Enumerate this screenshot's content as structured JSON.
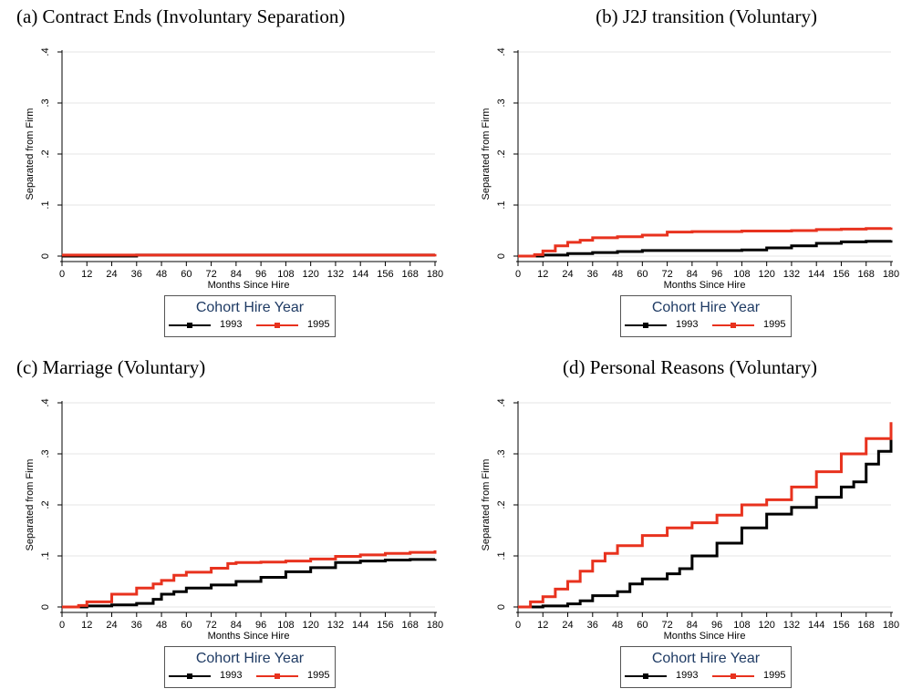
{
  "colors": {
    "c1993": "#000000",
    "c1995": "#e8321e",
    "grid": "#e6e6e6"
  },
  "legend": {
    "title": "Cohort Hire Year",
    "labels": [
      "1993",
      "1995"
    ]
  },
  "chart_data": [
    {
      "type": "line",
      "title": "(a) Contract Ends (Involuntary Separation)",
      "xlabel": "Months Since Hire",
      "ylabel": "Separated from Firm",
      "xlim": [
        0,
        180
      ],
      "ylim": [
        0,
        0.4
      ],
      "xticks": [
        "0",
        "12",
        "24",
        "36",
        "48",
        "60",
        "72",
        "84",
        "96",
        "108",
        "120",
        "132",
        "144",
        "156",
        "168",
        "180"
      ],
      "yticks": [
        "0",
        ".1",
        ".2",
        ".3",
        ".4"
      ],
      "series": [
        {
          "name": "1993",
          "x": [
            0,
            35,
            36,
            180
          ],
          "y": [
            0,
            0,
            0.002,
            0.002
          ]
        },
        {
          "name": "1995",
          "x": [
            0,
            180
          ],
          "y": [
            0.002,
            0.004
          ]
        }
      ]
    },
    {
      "type": "line",
      "title": "(b) J2J transition (Voluntary)",
      "xlabel": "Months Since Hire",
      "ylabel": "Separated from Firm",
      "xlim": [
        0,
        180
      ],
      "ylim": [
        0,
        0.4
      ],
      "xticks": [
        "0",
        "12",
        "24",
        "36",
        "48",
        "60",
        "72",
        "84",
        "96",
        "108",
        "120",
        "132",
        "144",
        "156",
        "168",
        "180"
      ],
      "yticks": [
        "0",
        ".1",
        ".2",
        ".3",
        ".4"
      ],
      "series": [
        {
          "name": "1993",
          "x": [
            0,
            12,
            24,
            36,
            48,
            60,
            84,
            108,
            120,
            132,
            144,
            156,
            168,
            180
          ],
          "y": [
            0,
            0.002,
            0.005,
            0.007,
            0.009,
            0.011,
            0.011,
            0.012,
            0.016,
            0.02,
            0.025,
            0.028,
            0.029,
            0.031
          ]
        },
        {
          "name": "1995",
          "x": [
            0,
            8,
            12,
            18,
            24,
            30,
            36,
            48,
            60,
            72,
            84,
            96,
            108,
            120,
            132,
            144,
            156,
            168,
            180
          ],
          "y": [
            0,
            0.003,
            0.01,
            0.02,
            0.027,
            0.031,
            0.036,
            0.038,
            0.041,
            0.047,
            0.048,
            0.048,
            0.049,
            0.049,
            0.05,
            0.052,
            0.053,
            0.054,
            0.056
          ]
        }
      ]
    },
    {
      "type": "line",
      "title": "(c) Marriage (Voluntary)",
      "xlabel": "Months Since Hire",
      "ylabel": "Separated from Firm",
      "xlim": [
        0,
        180
      ],
      "ylim": [
        0,
        0.4
      ],
      "xticks": [
        "0",
        "12",
        "24",
        "36",
        "48",
        "60",
        "72",
        "84",
        "96",
        "108",
        "120",
        "132",
        "144",
        "156",
        "168",
        "180"
      ],
      "yticks": [
        "0",
        ".1",
        ".2",
        ".3",
        ".4"
      ],
      "series": [
        {
          "name": "1993",
          "x": [
            0,
            12,
            24,
            36,
            44,
            48,
            54,
            60,
            72,
            84,
            96,
            108,
            120,
            132,
            144,
            156,
            168,
            180
          ],
          "y": [
            0,
            0.002,
            0.004,
            0.007,
            0.015,
            0.025,
            0.03,
            0.037,
            0.043,
            0.05,
            0.058,
            0.069,
            0.077,
            0.087,
            0.09,
            0.092,
            0.093,
            0.094
          ]
        },
        {
          "name": "1995",
          "x": [
            0,
            8,
            12,
            24,
            36,
            44,
            48,
            54,
            60,
            72,
            80,
            84,
            96,
            108,
            120,
            132,
            144,
            156,
            168,
            180
          ],
          "y": [
            0,
            0.003,
            0.01,
            0.025,
            0.037,
            0.045,
            0.052,
            0.062,
            0.068,
            0.076,
            0.085,
            0.087,
            0.088,
            0.09,
            0.094,
            0.099,
            0.102,
            0.105,
            0.107,
            0.111
          ]
        }
      ]
    },
    {
      "type": "line",
      "title": "(d) Personal Reasons (Voluntary)",
      "xlabel": "Months Since Hire",
      "ylabel": "Separated from Firm",
      "xlim": [
        0,
        180
      ],
      "ylim": [
        0,
        0.4
      ],
      "xticks": [
        "0",
        "12",
        "24",
        "36",
        "48",
        "60",
        "72",
        "84",
        "96",
        "108",
        "120",
        "132",
        "144",
        "156",
        "168",
        "180"
      ],
      "yticks": [
        "0",
        ".1",
        ".2",
        ".3",
        ".4"
      ],
      "series": [
        {
          "name": "1993",
          "x": [
            0,
            12,
            24,
            30,
            36,
            48,
            54,
            60,
            72,
            78,
            84,
            96,
            108,
            120,
            132,
            144,
            156,
            162,
            168,
            174,
            180
          ],
          "y": [
            0,
            0.002,
            0.006,
            0.012,
            0.022,
            0.03,
            0.045,
            0.055,
            0.065,
            0.075,
            0.1,
            0.125,
            0.155,
            0.182,
            0.195,
            0.215,
            0.235,
            0.245,
            0.28,
            0.305,
            0.33
          ]
        },
        {
          "name": "1995",
          "x": [
            0,
            6,
            12,
            18,
            24,
            30,
            36,
            42,
            48,
            60,
            72,
            84,
            96,
            108,
            120,
            132,
            144,
            156,
            168,
            180
          ],
          "y": [
            0,
            0.01,
            0.02,
            0.035,
            0.05,
            0.07,
            0.09,
            0.105,
            0.12,
            0.14,
            0.155,
            0.165,
            0.18,
            0.2,
            0.21,
            0.235,
            0.265,
            0.3,
            0.33,
            0.362
          ]
        }
      ]
    }
  ]
}
